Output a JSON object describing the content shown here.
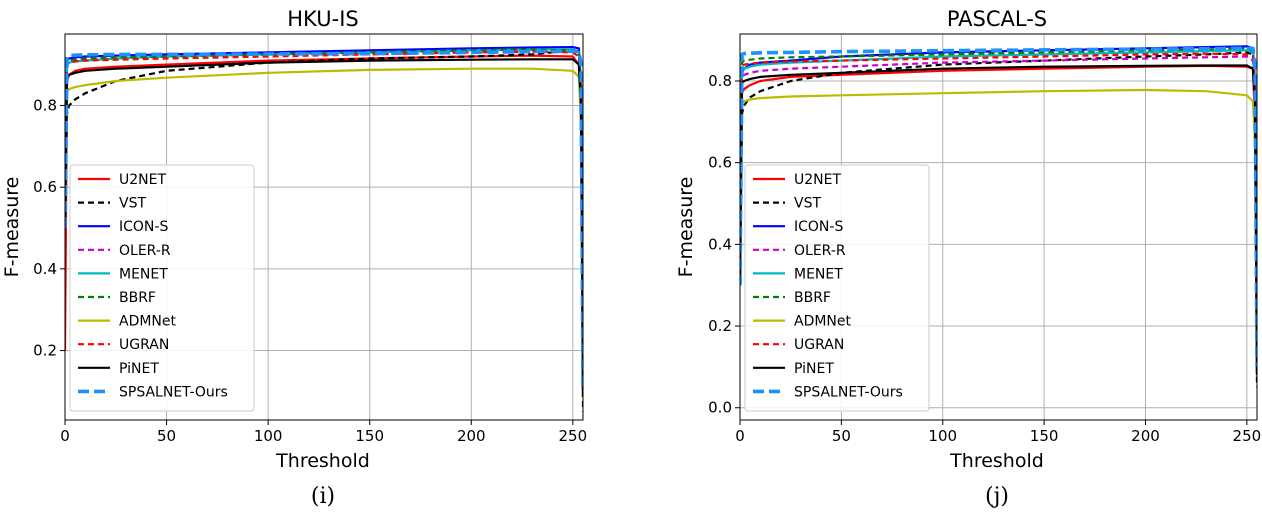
{
  "chart_data": [
    {
      "type": "line",
      "title": "HKU-IS",
      "xlabel": "Threshold",
      "ylabel": "F-measure",
      "caption": "(i)",
      "xlim": [
        0,
        255
      ],
      "ylim": [
        0.03,
        0.975
      ],
      "xticks": [
        0,
        50,
        100,
        150,
        200,
        250
      ],
      "yticks": [
        0.2,
        0.4,
        0.6,
        0.8
      ],
      "grid": true,
      "legend_location": "lower-left",
      "x": [
        0,
        1,
        2,
        5,
        10,
        25,
        50,
        100,
        150,
        200,
        230,
        250,
        253,
        254,
        255
      ],
      "series": [
        {
          "name": "U2NET",
          "color": "#ff0000",
          "dash": "solid",
          "values": [
            0.2,
            0.86,
            0.875,
            0.885,
            0.89,
            0.895,
            0.9,
            0.91,
            0.915,
            0.92,
            0.922,
            0.92,
            0.9,
            0.75,
            0.1
          ]
        },
        {
          "name": "VST",
          "color": "#000000",
          "dash": "dashed",
          "values": [
            0.5,
            0.78,
            0.8,
            0.815,
            0.83,
            0.86,
            0.885,
            0.905,
            0.915,
            0.92,
            0.925,
            0.935,
            0.93,
            0.8,
            0.05
          ]
        },
        {
          "name": "ICON-S",
          "color": "#0000ff",
          "dash": "solid",
          "values": [
            0.5,
            0.91,
            0.915,
            0.918,
            0.92,
            0.922,
            0.925,
            0.93,
            0.935,
            0.94,
            0.942,
            0.943,
            0.94,
            0.85,
            0.1
          ]
        },
        {
          "name": "OLER-R",
          "color": "#cc00cc",
          "dash": "dashed",
          "values": [
            0.5,
            0.905,
            0.91,
            0.912,
            0.915,
            0.918,
            0.92,
            0.925,
            0.93,
            0.935,
            0.937,
            0.938,
            0.93,
            0.85,
            0.1
          ]
        },
        {
          "name": "MENET",
          "color": "#00bbbb",
          "dash": "solid",
          "values": [
            0.5,
            0.9,
            0.905,
            0.908,
            0.91,
            0.915,
            0.92,
            0.925,
            0.93,
            0.935,
            0.937,
            0.938,
            0.93,
            0.85,
            0.1
          ]
        },
        {
          "name": "BBRF",
          "color": "#008000",
          "dash": "dashed",
          "values": [
            0.5,
            0.905,
            0.91,
            0.912,
            0.915,
            0.918,
            0.92,
            0.925,
            0.93,
            0.935,
            0.937,
            0.935,
            0.93,
            0.85,
            0.1
          ]
        },
        {
          "name": "ADMNet",
          "color": "#bbbb00",
          "dash": "solid",
          "values": [
            0.5,
            0.835,
            0.84,
            0.845,
            0.85,
            0.86,
            0.868,
            0.88,
            0.887,
            0.89,
            0.89,
            0.885,
            0.87,
            0.75,
            0.1
          ]
        },
        {
          "name": "UGRAN",
          "color": "#ff0000",
          "dash": "dashed",
          "values": [
            0.5,
            0.9,
            0.905,
            0.908,
            0.91,
            0.912,
            0.915,
            0.92,
            0.925,
            0.93,
            0.932,
            0.93,
            0.92,
            0.85,
            0.1
          ]
        },
        {
          "name": "PiNET",
          "color": "#000000",
          "dash": "solid",
          "values": [
            0.5,
            0.87,
            0.875,
            0.88,
            0.885,
            0.89,
            0.895,
            0.905,
            0.91,
            0.912,
            0.913,
            0.913,
            0.9,
            0.8,
            0.1
          ]
        },
        {
          "name": "SPSALNET-Ours",
          "color": "#1e90ff",
          "dash": "bigdash",
          "values": [
            0.5,
            0.92,
            0.922,
            0.923,
            0.924,
            0.925,
            0.925,
            0.926,
            0.927,
            0.93,
            0.932,
            0.933,
            0.933,
            0.9,
            0.1
          ]
        }
      ]
    },
    {
      "type": "line",
      "title": "PASCAL-S",
      "xlabel": "Threshold",
      "ylabel": "F-measure",
      "caption": "(j)",
      "xlim": [
        0,
        255
      ],
      "ylim": [
        -0.03,
        0.915
      ],
      "xticks": [
        0,
        50,
        100,
        150,
        200,
        250
      ],
      "yticks": [
        0.0,
        0.2,
        0.4,
        0.6,
        0.8
      ],
      "grid": true,
      "legend_location": "lower-left",
      "x": [
        0,
        1,
        2,
        5,
        10,
        25,
        50,
        100,
        150,
        200,
        230,
        250,
        253,
        254,
        255
      ],
      "series": [
        {
          "name": "U2NET",
          "color": "#ff0000",
          "dash": "solid",
          "values": [
            0.3,
            0.77,
            0.78,
            0.79,
            0.8,
            0.81,
            0.815,
            0.825,
            0.83,
            0.835,
            0.837,
            0.835,
            0.83,
            0.7,
            0.08
          ]
        },
        {
          "name": "VST",
          "color": "#000000",
          "dash": "dashed",
          "values": [
            0.3,
            0.72,
            0.74,
            0.76,
            0.775,
            0.8,
            0.82,
            0.84,
            0.85,
            0.86,
            0.865,
            0.87,
            0.865,
            0.75,
            0.05
          ]
        },
        {
          "name": "ICON-S",
          "color": "#0000ff",
          "dash": "solid",
          "values": [
            0.3,
            0.82,
            0.83,
            0.84,
            0.845,
            0.85,
            0.86,
            0.87,
            0.875,
            0.88,
            0.883,
            0.885,
            0.88,
            0.8,
            0.1
          ]
        },
        {
          "name": "OLER-R",
          "color": "#cc00cc",
          "dash": "dashed",
          "values": [
            0.3,
            0.81,
            0.815,
            0.82,
            0.825,
            0.83,
            0.835,
            0.845,
            0.85,
            0.855,
            0.858,
            0.86,
            0.85,
            0.78,
            0.1
          ]
        },
        {
          "name": "MENET",
          "color": "#00bbbb",
          "dash": "solid",
          "values": [
            0.3,
            0.825,
            0.83,
            0.835,
            0.84,
            0.845,
            0.85,
            0.86,
            0.865,
            0.87,
            0.873,
            0.875,
            0.87,
            0.78,
            0.1
          ]
        },
        {
          "name": "BBRF",
          "color": "#008000",
          "dash": "dashed",
          "values": [
            0.3,
            0.845,
            0.85,
            0.852,
            0.855,
            0.858,
            0.86,
            0.865,
            0.87,
            0.875,
            0.877,
            0.88,
            0.875,
            0.8,
            0.1
          ]
        },
        {
          "name": "ADMNet",
          "color": "#bbbb00",
          "dash": "solid",
          "values": [
            0.3,
            0.745,
            0.75,
            0.755,
            0.758,
            0.762,
            0.765,
            0.77,
            0.775,
            0.778,
            0.775,
            0.765,
            0.75,
            0.65,
            0.08
          ]
        },
        {
          "name": "UGRAN",
          "color": "#ff0000",
          "dash": "dashed",
          "values": [
            0.3,
            0.835,
            0.84,
            0.842,
            0.845,
            0.848,
            0.85,
            0.855,
            0.86,
            0.865,
            0.867,
            0.865,
            0.86,
            0.8,
            0.1
          ]
        },
        {
          "name": "PiNET",
          "color": "#000000",
          "dash": "solid",
          "values": [
            0.3,
            0.795,
            0.8,
            0.805,
            0.81,
            0.815,
            0.82,
            0.83,
            0.835,
            0.837,
            0.838,
            0.838,
            0.83,
            0.75,
            0.08
          ]
        },
        {
          "name": "SPSALNET-Ours",
          "color": "#1e90ff",
          "dash": "bigdash",
          "values": [
            0.3,
            0.865,
            0.867,
            0.868,
            0.869,
            0.87,
            0.872,
            0.874,
            0.876,
            0.878,
            0.879,
            0.88,
            0.88,
            0.84,
            0.1
          ]
        }
      ]
    }
  ]
}
